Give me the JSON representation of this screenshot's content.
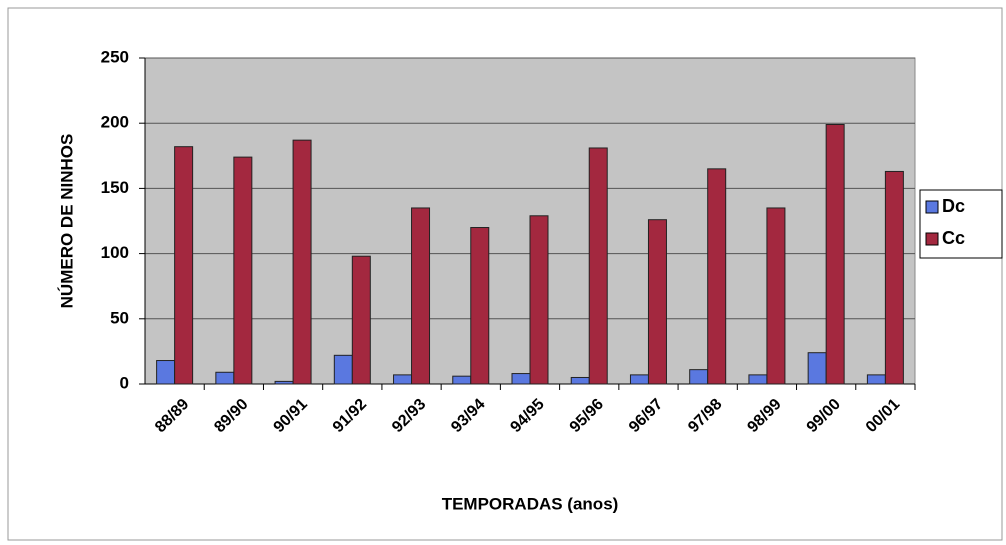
{
  "chart_data": {
    "type": "bar",
    "x_label": "TEMPORADAS (anos)",
    "y_label": "NÚMERO DE NINHOS",
    "categories": [
      "88/89",
      "89/90",
      "90/91",
      "91/92",
      "92/93",
      "93/94",
      "94/95",
      "95/96",
      "96/97",
      "97/98",
      "98/99",
      "99/00",
      "00/01"
    ],
    "series": [
      {
        "name": "Dc",
        "color": "#5a78e0",
        "values": [
          18,
          9,
          2,
          22,
          7,
          6,
          8,
          5,
          7,
          11,
          7,
          24,
          7
        ]
      },
      {
        "name": "Cc",
        "color": "#a3283f",
        "values": [
          182,
          174,
          187,
          98,
          135,
          120,
          129,
          181,
          126,
          165,
          135,
          199,
          163
        ]
      }
    ],
    "ylim": [
      0,
      250
    ],
    "yticks": [
      0,
      50,
      100,
      150,
      200,
      250
    ],
    "grid": true,
    "legend": "right"
  }
}
